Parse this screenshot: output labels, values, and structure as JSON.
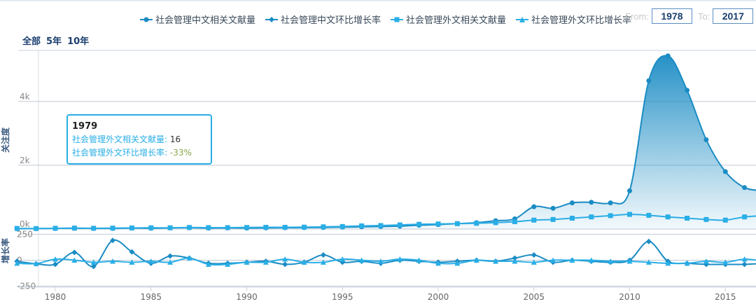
{
  "legend": [
    {
      "label": "社会管理中文相关文献量",
      "color": "#1b8cc4",
      "marker": "circle"
    },
    {
      "label": "社会管理中文环比增长率",
      "color": "#1b8cc4",
      "marker": "diamond"
    },
    {
      "label": "社会管理外文相关文献量",
      "color": "#2aaee6",
      "marker": "square"
    },
    {
      "label": "社会管理外文环比增长率",
      "color": "#2aaee6",
      "marker": "triangle"
    }
  ],
  "range": {
    "from_label": "From:",
    "from_value": "1978",
    "to_label": "To:",
    "to_value": "2017"
  },
  "range_buttons": [
    "全部",
    "5年",
    "10年"
  ],
  "tooltip": {
    "year": "1979",
    "line1_label": "社会管理外文相关文献量:",
    "line1_value": "16",
    "line2_label": "社会管理外文环比增长率:",
    "line2_value": "-33%"
  },
  "chart_data": [
    {
      "type": "area",
      "ylabel": "关注度",
      "ylim": [
        0,
        5600
      ],
      "yticks": [
        "0k",
        "2k",
        "4k"
      ],
      "ytick_values": [
        0,
        2000,
        4000
      ],
      "x": [
        1978,
        1979,
        1980,
        1981,
        1982,
        1983,
        1984,
        1985,
        1986,
        1987,
        1988,
        1989,
        1990,
        1991,
        1992,
        1993,
        1994,
        1995,
        1996,
        1997,
        1998,
        1999,
        2000,
        2001,
        2002,
        2003,
        2004,
        2005,
        2006,
        2007,
        2008,
        2009,
        2010,
        2011,
        2012,
        2013,
        2014,
        2015,
        2016,
        2017
      ],
      "series": [
        {
          "name": "社会管理中文相关文献量",
          "color": "#1b8cc4",
          "marker": "circle",
          "values": [
            10,
            15,
            20,
            25,
            20,
            20,
            30,
            25,
            35,
            40,
            30,
            35,
            30,
            35,
            40,
            45,
            50,
            60,
            70,
            80,
            90,
            120,
            140,
            170,
            200,
            260,
            320,
            700,
            650,
            820,
            840,
            820,
            1200,
            4650,
            5430,
            4350,
            2800,
            1800,
            1300,
            1200
          ]
        },
        {
          "name": "社会管理外文相关文献量",
          "color": "#2aaee6",
          "marker": "square",
          "values": [
            20,
            16,
            25,
            30,
            25,
            30,
            35,
            40,
            40,
            50,
            45,
            45,
            50,
            55,
            55,
            60,
            70,
            80,
            100,
            110,
            130,
            150,
            160,
            170,
            180,
            200,
            230,
            280,
            300,
            340,
            380,
            420,
            460,
            430,
            380,
            340,
            300,
            280,
            380,
            420
          ]
        }
      ]
    },
    {
      "type": "line",
      "ylabel": "增长率",
      "ylim": [
        -260,
        300
      ],
      "yticks": [
        "-250",
        "0",
        "250"
      ],
      "ytick_values": [
        -250,
        0,
        250
      ],
      "xticks": [
        1980,
        1985,
        1990,
        1995,
        2000,
        2005,
        2010,
        2015
      ],
      "x": [
        1978,
        1979,
        1980,
        1981,
        1982,
        1983,
        1984,
        1985,
        1986,
        1987,
        1988,
        1989,
        1990,
        1991,
        1992,
        1993,
        1994,
        1995,
        1996,
        1997,
        1998,
        1999,
        2000,
        2001,
        2002,
        2003,
        2004,
        2005,
        2006,
        2007,
        2008,
        2009,
        2010,
        2011,
        2012,
        2013,
        2014,
        2015,
        2016,
        2017
      ],
      "series": [
        {
          "name": "社会管理中文环比增长率",
          "color": "#1b8cc4",
          "marker": "diamond",
          "values": [
            -10,
            -35,
            -40,
            75,
            -60,
            190,
            80,
            -30,
            40,
            20,
            -30,
            -30,
            -20,
            -10,
            -40,
            -20,
            50,
            -20,
            -10,
            -30,
            0,
            -10,
            -20,
            -10,
            0,
            -10,
            20,
            50,
            -20,
            0,
            -10,
            -20,
            0,
            180,
            -10,
            -30,
            -40,
            -40,
            -40,
            -30
          ]
        },
        {
          "name": "社会管理外文环比增长率",
          "color": "#2aaee6",
          "marker": "triangle",
          "values": [
            -30,
            -33,
            10,
            0,
            -20,
            -10,
            -20,
            -10,
            -20,
            20,
            -40,
            -40,
            -20,
            -20,
            10,
            -20,
            -20,
            10,
            0,
            -10,
            10,
            0,
            -30,
            -30,
            0,
            -10,
            -10,
            -20,
            0,
            0,
            0,
            -10,
            -10,
            -20,
            -30,
            -30,
            -10,
            -20,
            10,
            -10
          ]
        }
      ]
    }
  ]
}
